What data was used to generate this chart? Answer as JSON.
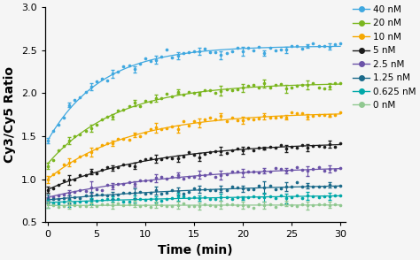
{
  "title": "",
  "xlabel": "Time (min)",
  "ylabel": "Cy3/Cy5 Ratio",
  "xlim": [
    -0.3,
    30.5
  ],
  "ylim": [
    0.5,
    3.0
  ],
  "yticks": [
    0.5,
    1.0,
    1.5,
    2.0,
    2.5,
    3.0
  ],
  "xticks": [
    0,
    5,
    10,
    15,
    20,
    25,
    30
  ],
  "series": [
    {
      "label": "40 nM",
      "color": "#3fa8e0",
      "y0": 1.45,
      "ymax": 2.55,
      "k": 0.18,
      "noise": 0.025
    },
    {
      "label": "20 nM",
      "color": "#7ab61e",
      "y0": 1.18,
      "ymax": 2.12,
      "k": 0.14,
      "noise": 0.022
    },
    {
      "label": "10 nM",
      "color": "#f5a800",
      "y0": 1.0,
      "ymax": 1.78,
      "k": 0.12,
      "noise": 0.02
    },
    {
      "label": "5 nM",
      "color": "#1a1a1a",
      "y0": 0.88,
      "ymax": 1.44,
      "k": 0.09,
      "noise": 0.018
    },
    {
      "label": "2.5 nM",
      "color": "#6b52a8",
      "y0": 0.79,
      "ymax": 1.17,
      "k": 0.07,
      "noise": 0.015
    },
    {
      "label": "1.25 nM",
      "color": "#1b6a8a",
      "y0": 0.76,
      "ymax": 0.96,
      "k": 0.055,
      "noise": 0.013
    },
    {
      "label": "0.625 nM",
      "color": "#00a8a8",
      "y0": 0.73,
      "ymax": 0.84,
      "k": 0.04,
      "noise": 0.012
    },
    {
      "label": "0 nM",
      "color": "#90c890",
      "y0": 0.695,
      "ymax": 0.715,
      "k": 0.01,
      "noise": 0.01
    }
  ],
  "legend_fontsize": 7.5,
  "axis_label_fontsize": 10,
  "tick_fontsize": 8,
  "background_color": "#f5f5f5",
  "n_data_pts": 55,
  "err_every": 4,
  "err_size": 0.04
}
